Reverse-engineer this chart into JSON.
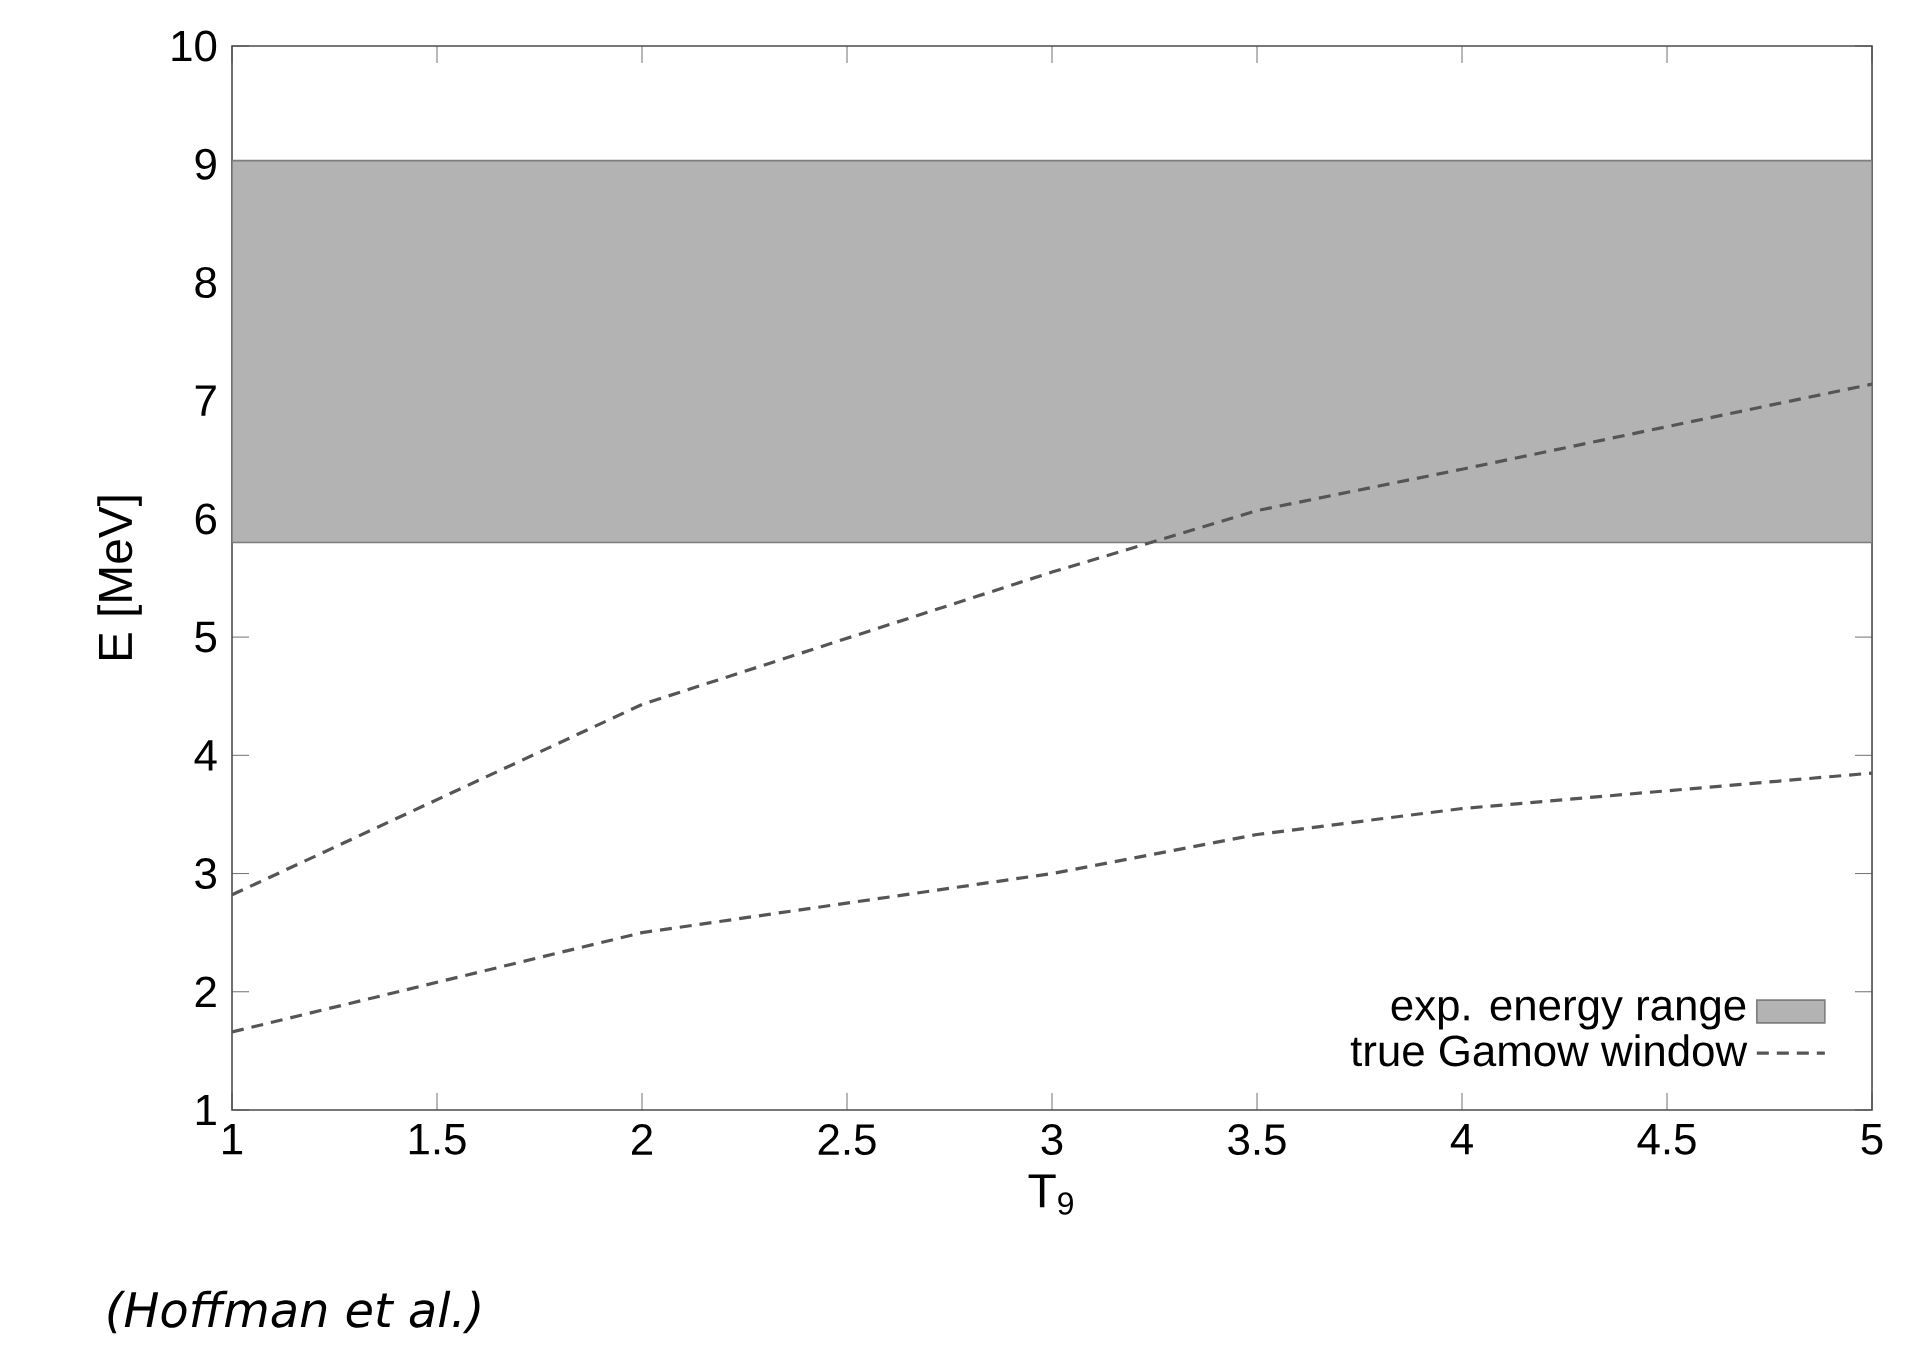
{
  "chart_data": {
    "type": "line",
    "xlabel": "T$_{9}$",
    "ylabel": "E [MeV]",
    "xlim": [
      1,
      5
    ],
    "ylim": [
      1,
      10
    ],
    "xticks": [
      1,
      1.5,
      2,
      2.5,
      3,
      3.5,
      4,
      4.5,
      5
    ],
    "yticks": [
      1,
      2,
      3,
      4,
      5,
      6,
      7,
      8,
      9,
      10
    ],
    "series": [
      {
        "name": "true Gamow window",
        "color": "#555555",
        "x": [
          1,
          2,
          3,
          3.5,
          4,
          5
        ],
        "values": [
          2.82,
          4.43,
          5.55,
          6.07,
          6.42,
          7.14
        ]
      },
      {
        "color": "#555555",
        "x": [
          1,
          2,
          3,
          3.5,
          4,
          5
        ],
        "values": [
          1.66,
          2.5,
          3.0,
          3.33,
          3.55,
          3.85
        ]
      }
    ],
    "line_style": "dashed",
    "marker": "none",
    "grid": false,
    "legend": "bottom right",
    "bands": [
      {
        "axis": "y",
        "from": 5.8,
        "to": 9.03,
        "label": "exp. energy range",
        "color": "#b3b3b3"
      }
    ],
    "annotations": [
      "(Hoffman et al.)"
    ]
  }
}
